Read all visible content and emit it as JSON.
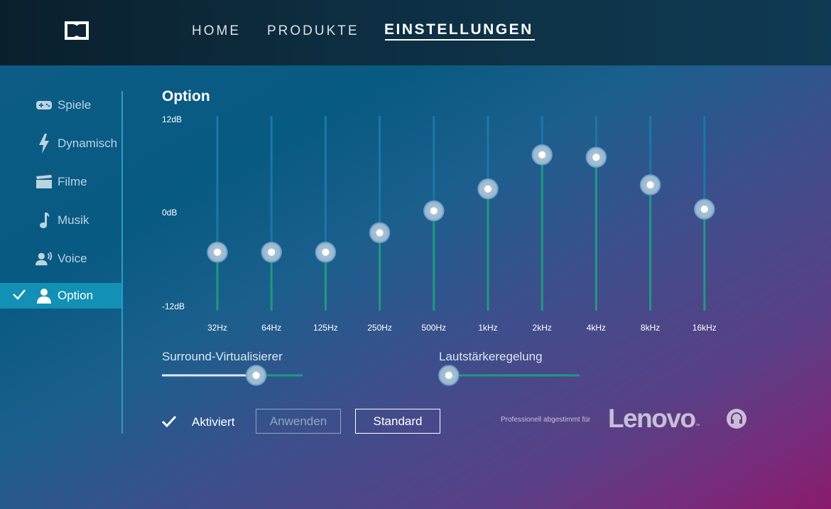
{
  "nav": {
    "logo_icon": "dolby-logo-icon",
    "items": [
      {
        "label": "HOME"
      },
      {
        "label": "PRODUKTE"
      },
      {
        "label": "EINSTELLUNGEN",
        "active": true
      }
    ]
  },
  "sidebar": {
    "items": [
      {
        "label": "Spiele",
        "icon": "gamepad-icon"
      },
      {
        "label": "Dynamisch",
        "icon": "lightning-icon"
      },
      {
        "label": "Filme",
        "icon": "film-icon"
      },
      {
        "label": "Musik",
        "icon": "music-note-icon"
      },
      {
        "label": "Voice",
        "icon": "voice-icon"
      },
      {
        "label": "Option",
        "icon": "person-icon",
        "active": true
      }
    ]
  },
  "main": {
    "title": "Option",
    "db_top": "12dB",
    "db_mid": "0dB",
    "db_bottom": "-12dB"
  },
  "equalizer": {
    "range_db": [
      -12,
      12
    ],
    "bands": [
      {
        "label": "32Hz",
        "db": -4.8
      },
      {
        "label": "64Hz",
        "db": -4.8
      },
      {
        "label": "125Hz",
        "db": -4.8
      },
      {
        "label": "250Hz",
        "db": -2.4
      },
      {
        "label": "500Hz",
        "db": 0.3
      },
      {
        "label": "1kHz",
        "db": 3.0
      },
      {
        "label": "2kHz",
        "db": 7.2
      },
      {
        "label": "4kHz",
        "db": 6.9
      },
      {
        "label": "8kHz",
        "db": 3.5
      },
      {
        "label": "16kHz",
        "db": 0.5
      }
    ]
  },
  "surround": {
    "label": "Surround-Virtualisierer",
    "value_fraction": 0.67
  },
  "volume": {
    "label": "Lautstärkeregelung",
    "value_fraction": 0.07
  },
  "footer": {
    "activated_label": "Aktiviert",
    "activated": true,
    "apply_label": "Anwenden",
    "default_label": "Standard",
    "tuned_label": "Professionell abgestimmt für",
    "brand": "Lenovo",
    "brand_tm": "™",
    "brand_icon": "headphone-icon"
  },
  "colors": {
    "accent": "#1290b6",
    "track_active": "#1d9b7f",
    "track_top": "#1a78a6"
  }
}
